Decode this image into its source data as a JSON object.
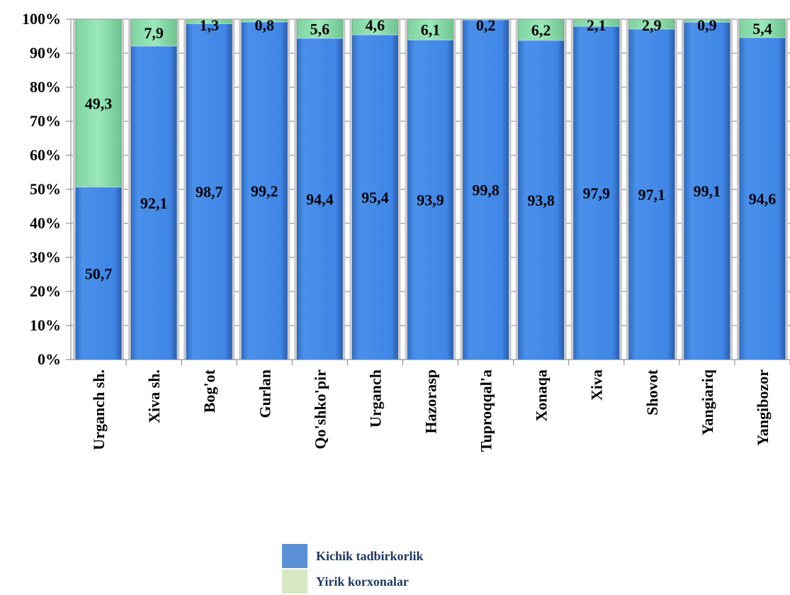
{
  "chart_data": {
    "type": "bar",
    "stacked": true,
    "percent_stacked": true,
    "categories": [
      "Urganch sh.",
      "Xiva sh.",
      "Bog'ot",
      "Gurlan",
      "Qo'shko'pir",
      "Urganch",
      "Hazorasp",
      "Tuproqqal'a",
      "Xonaqa",
      "Xiva",
      "Shovot",
      "Yangiariq",
      "Yangibozor"
    ],
    "series": [
      {
        "name": "Kichik tadbirkorlik",
        "values": [
          50.7,
          92.1,
          98.7,
          99.2,
          94.4,
          95.4,
          93.9,
          99.8,
          93.8,
          97.9,
          97.1,
          99.1,
          94.6
        ],
        "labels": [
          "50,7",
          "92,1",
          "98,7",
          "99,2",
          "94,4",
          "95,4",
          "93,9",
          "99,8",
          "93,8",
          "97,9",
          "97,1",
          "99,1",
          "94,6"
        ],
        "color": "#3f86e6"
      },
      {
        "name": "Yirik korxonalar",
        "values": [
          49.3,
          7.9,
          1.3,
          0.8,
          5.6,
          4.6,
          6.1,
          0.2,
          6.2,
          2.1,
          2.9,
          0.9,
          5.4
        ],
        "labels": [
          "49,3",
          "7,9",
          "1,3",
          "0,8",
          "5,6",
          "4,6",
          "6,1",
          "0,2",
          "6,2",
          "2,1",
          "2,9",
          "0,9",
          "5,4"
        ],
        "color": "#8fe0b0"
      }
    ],
    "ylim": [
      0,
      100
    ],
    "yticks": [
      "0%",
      "10%",
      "20%",
      "30%",
      "40%",
      "50%",
      "60%",
      "70%",
      "80%",
      "90%",
      "100%"
    ],
    "grid": true,
    "legend_position": "bottom"
  },
  "legend": {
    "items": [
      {
        "label": "Kichik tadbirkorlik",
        "color": "#5b8fd6"
      },
      {
        "label": "Yirik korxonalar",
        "color": "#d6e8c4"
      }
    ]
  }
}
